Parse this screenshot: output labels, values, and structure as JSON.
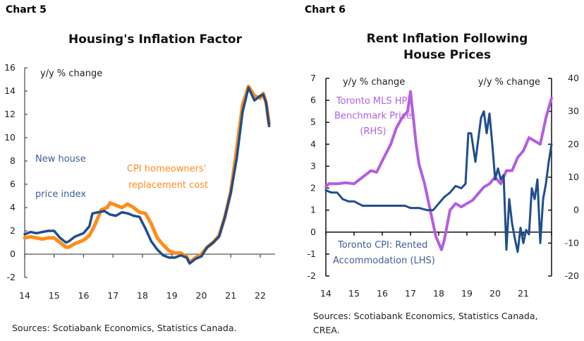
{
  "colors": {
    "navy": "#1f4e8c",
    "orange": "#ff8c1a",
    "purple": "#b35ee0",
    "axis": "#555555"
  },
  "chart_data": [
    {
      "label": "Chart 5",
      "type": "line",
      "title": "Housing's Inflation Factor",
      "unit_label": "y/y % change",
      "xlabel": "",
      "ylabel": "y/y % change",
      "x_ticks": [
        "14",
        "15",
        "16",
        "17",
        "18",
        "19",
        "20",
        "21",
        "22"
      ],
      "xlim": [
        14,
        22.4
      ],
      "y_ticks": [
        "-2",
        "0",
        "2",
        "4",
        "6",
        "8",
        "10",
        "12",
        "14",
        "16"
      ],
      "ylim": [
        -2,
        16
      ],
      "annotations": {
        "new_house": [
          "New house",
          "price index"
        ],
        "cpi": [
          "CPI  homeowners'",
          "replacement cost"
        ]
      },
      "series": [
        {
          "name": "CPI homeowners' replacement cost",
          "color": "orange",
          "x": [
            14.0,
            14.2,
            14.4,
            14.6,
            14.8,
            15.0,
            15.2,
            15.4,
            15.5,
            15.7,
            16.0,
            16.2,
            16.4,
            16.6,
            16.8,
            16.9,
            17.1,
            17.3,
            17.5,
            17.7,
            17.9,
            18.1,
            18.3,
            18.5,
            18.7,
            18.9,
            19.1,
            19.3,
            19.5,
            19.6,
            19.8,
            20.0,
            20.2,
            20.4,
            20.6,
            20.8,
            21.0,
            21.2,
            21.4,
            21.6,
            21.8,
            22.0,
            22.1,
            22.2,
            22.3
          ],
          "y": [
            1.4,
            1.5,
            1.4,
            1.3,
            1.4,
            1.4,
            1.0,
            0.6,
            0.6,
            0.9,
            1.2,
            1.6,
            2.6,
            3.8,
            4.0,
            4.4,
            4.2,
            4.0,
            4.3,
            4.0,
            3.6,
            3.5,
            2.6,
            1.4,
            0.8,
            0.3,
            0.1,
            0.1,
            -0.2,
            -0.7,
            -0.3,
            0.0,
            0.6,
            1.0,
            1.6,
            3.2,
            5.4,
            9.0,
            12.8,
            14.4,
            13.6,
            13.4,
            13.8,
            13.0,
            11.2
          ]
        },
        {
          "name": "New house price index",
          "color": "navy",
          "x": [
            14.0,
            14.2,
            14.4,
            14.6,
            14.8,
            15.0,
            15.2,
            15.4,
            15.5,
            15.7,
            16.0,
            16.2,
            16.3,
            16.5,
            16.7,
            16.9,
            17.1,
            17.3,
            17.5,
            17.7,
            17.9,
            18.1,
            18.3,
            18.5,
            18.7,
            18.9,
            19.1,
            19.3,
            19.5,
            19.6,
            19.8,
            20.0,
            20.2,
            20.4,
            20.6,
            20.8,
            21.0,
            21.2,
            21.4,
            21.6,
            21.8,
            22.0,
            22.1,
            22.2,
            22.3
          ],
          "y": [
            1.7,
            1.9,
            1.8,
            1.9,
            2.0,
            2.0,
            1.4,
            1.0,
            1.1,
            1.5,
            1.8,
            2.4,
            3.5,
            3.6,
            3.7,
            3.4,
            3.3,
            3.6,
            3.5,
            3.3,
            3.2,
            2.2,
            1.1,
            0.4,
            -0.1,
            -0.3,
            -0.3,
            -0.1,
            -0.3,
            -0.8,
            -0.4,
            -0.2,
            0.6,
            1.0,
            1.5,
            3.2,
            5.3,
            8.2,
            12.2,
            14.3,
            13.2,
            13.6,
            13.7,
            13.0,
            11.0
          ]
        }
      ],
      "source": "Sources: Scotiabank Economics, Statistics Canada."
    },
    {
      "label": "Chart 6",
      "type": "line",
      "title_lines": [
        "Rent Inflation Following",
        "House Prices"
      ],
      "unit_label_left": "y/y % change",
      "unit_label_right": "y/y % change",
      "xlabel": "",
      "ylabel": "y/y % change",
      "x_ticks": [
        "14",
        "15",
        "16",
        "17",
        "18",
        "19",
        "20",
        "21"
      ],
      "xlim": [
        14,
        22
      ],
      "y_ticks_left": [
        "-2",
        "-1",
        "0",
        "1",
        "2",
        "3",
        "4",
        "5",
        "6",
        "7"
      ],
      "ylim_left": [
        -2,
        7
      ],
      "y_ticks_right": [
        "-20",
        "-10",
        "0",
        "10",
        "20",
        "30",
        "40"
      ],
      "ylim_right": [
        -20,
        40
      ],
      "annotations": {
        "mls": [
          "Toronto MLS HPI",
          "Benchmark Price",
          "(RHS)"
        ],
        "cpi": [
          "Toronto CPI: Rented",
          "Accommodation (LHS)"
        ]
      },
      "series": [
        {
          "name": "Toronto MLS HPI Benchmark Price (RHS)",
          "color": "purple",
          "axis": "right",
          "x": [
            14.0,
            14.1,
            14.4,
            14.7,
            15.0,
            15.3,
            15.6,
            15.8,
            16.0,
            16.3,
            16.5,
            16.7,
            16.9,
            17.0,
            17.2,
            17.3,
            17.5,
            17.7,
            17.9,
            18.1,
            18.2,
            18.4,
            18.6,
            18.8,
            19.0,
            19.2,
            19.4,
            19.6,
            19.8,
            20.0,
            20.2,
            20.4,
            20.6,
            20.8,
            21.0,
            21.2,
            21.4,
            21.6,
            21.8,
            22.0
          ],
          "y": [
            7,
            8,
            8,
            8.3,
            8,
            10,
            12,
            11.5,
            15,
            20,
            25,
            28,
            30,
            36,
            20,
            14,
            8,
            0,
            -8,
            -12,
            -9,
            0,
            2,
            1,
            2,
            3,
            5,
            7,
            8,
            10,
            8,
            12,
            12,
            16,
            18,
            22,
            21,
            20,
            28,
            34
          ]
        },
        {
          "name": "Toronto CPI: Rented Accommodation (LHS)",
          "color": "navy",
          "axis": "left",
          "x": [
            14.0,
            14.2,
            14.4,
            14.6,
            14.8,
            15.0,
            15.3,
            15.6,
            15.9,
            16.2,
            16.5,
            16.8,
            17.0,
            17.3,
            17.6,
            17.8,
            18.0,
            18.2,
            18.4,
            18.6,
            18.8,
            18.95,
            19.05,
            19.15,
            19.3,
            19.4,
            19.5,
            19.6,
            19.7,
            19.8,
            19.9,
            20.0,
            20.1,
            20.2,
            20.3,
            20.4,
            20.5,
            20.6,
            20.7,
            20.8,
            20.9,
            21.0,
            21.1,
            21.2,
            21.3,
            21.4,
            21.5,
            21.6,
            21.7,
            21.8,
            21.9,
            22.0
          ],
          "y": [
            1.9,
            1.8,
            1.8,
            1.5,
            1.4,
            1.4,
            1.2,
            1.2,
            1.2,
            1.2,
            1.2,
            1.2,
            1.1,
            1.1,
            1.0,
            1.0,
            1.3,
            1.6,
            1.8,
            2.1,
            2.0,
            2.2,
            4.5,
            4.5,
            3.2,
            4.2,
            5.2,
            5.5,
            4.5,
            5.4,
            4.0,
            2.4,
            2.9,
            2.4,
            2.6,
            -0.8,
            1.5,
            0.4,
            -0.3,
            -0.9,
            0.2,
            -0.5,
            0.1,
            -0.1,
            2.0,
            1.5,
            2.4,
            -0.5,
            1.5,
            2.2,
            3.2,
            4.0
          ]
        }
      ],
      "source_lines": [
        "Sources: Scotiabank Economics, Statistics Canada,",
        "CREA."
      ]
    }
  ]
}
